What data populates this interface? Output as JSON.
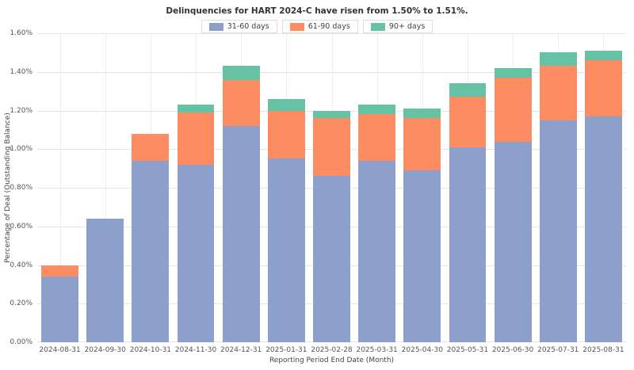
{
  "chart_data": {
    "type": "bar",
    "stacked": true,
    "title": "Delinquencies for HART 2024-C have risen from 1.50% to 1.51%.",
    "xlabel": "Reporting Period End Date (Month)",
    "ylabel": "Percentage of Deal (Outstanding Balance)",
    "ylim": [
      0,
      1.6
    ],
    "ytick_step": 0.2,
    "grid": true,
    "legend_position": "top-center",
    "categories": [
      "2024-08-31",
      "2024-09-30",
      "2024-10-31",
      "2024-11-30",
      "2024-12-31",
      "2025-01-31",
      "2025-02-28",
      "2025-03-31",
      "2025-04-30",
      "2025-05-31",
      "2025-06-30",
      "2025-07-31",
      "2025-08-31"
    ],
    "series": [
      {
        "name": "31-60 days",
        "color": "#8da0cb",
        "values": [
          0.34,
          0.64,
          0.94,
          0.92,
          1.12,
          0.95,
          0.86,
          0.94,
          0.89,
          1.01,
          1.04,
          1.15,
          1.17
        ]
      },
      {
        "name": "61-90 days",
        "color": "#fc8d62",
        "values": [
          0.06,
          0.0,
          0.14,
          0.27,
          0.24,
          0.25,
          0.3,
          0.24,
          0.27,
          0.26,
          0.33,
          0.28,
          0.29
        ]
      },
      {
        "name": "90+ days",
        "color": "#66c2a5",
        "values": [
          0.0,
          0.0,
          0.0,
          0.04,
          0.07,
          0.06,
          0.04,
          0.05,
          0.05,
          0.07,
          0.05,
          0.07,
          0.05
        ]
      }
    ]
  }
}
